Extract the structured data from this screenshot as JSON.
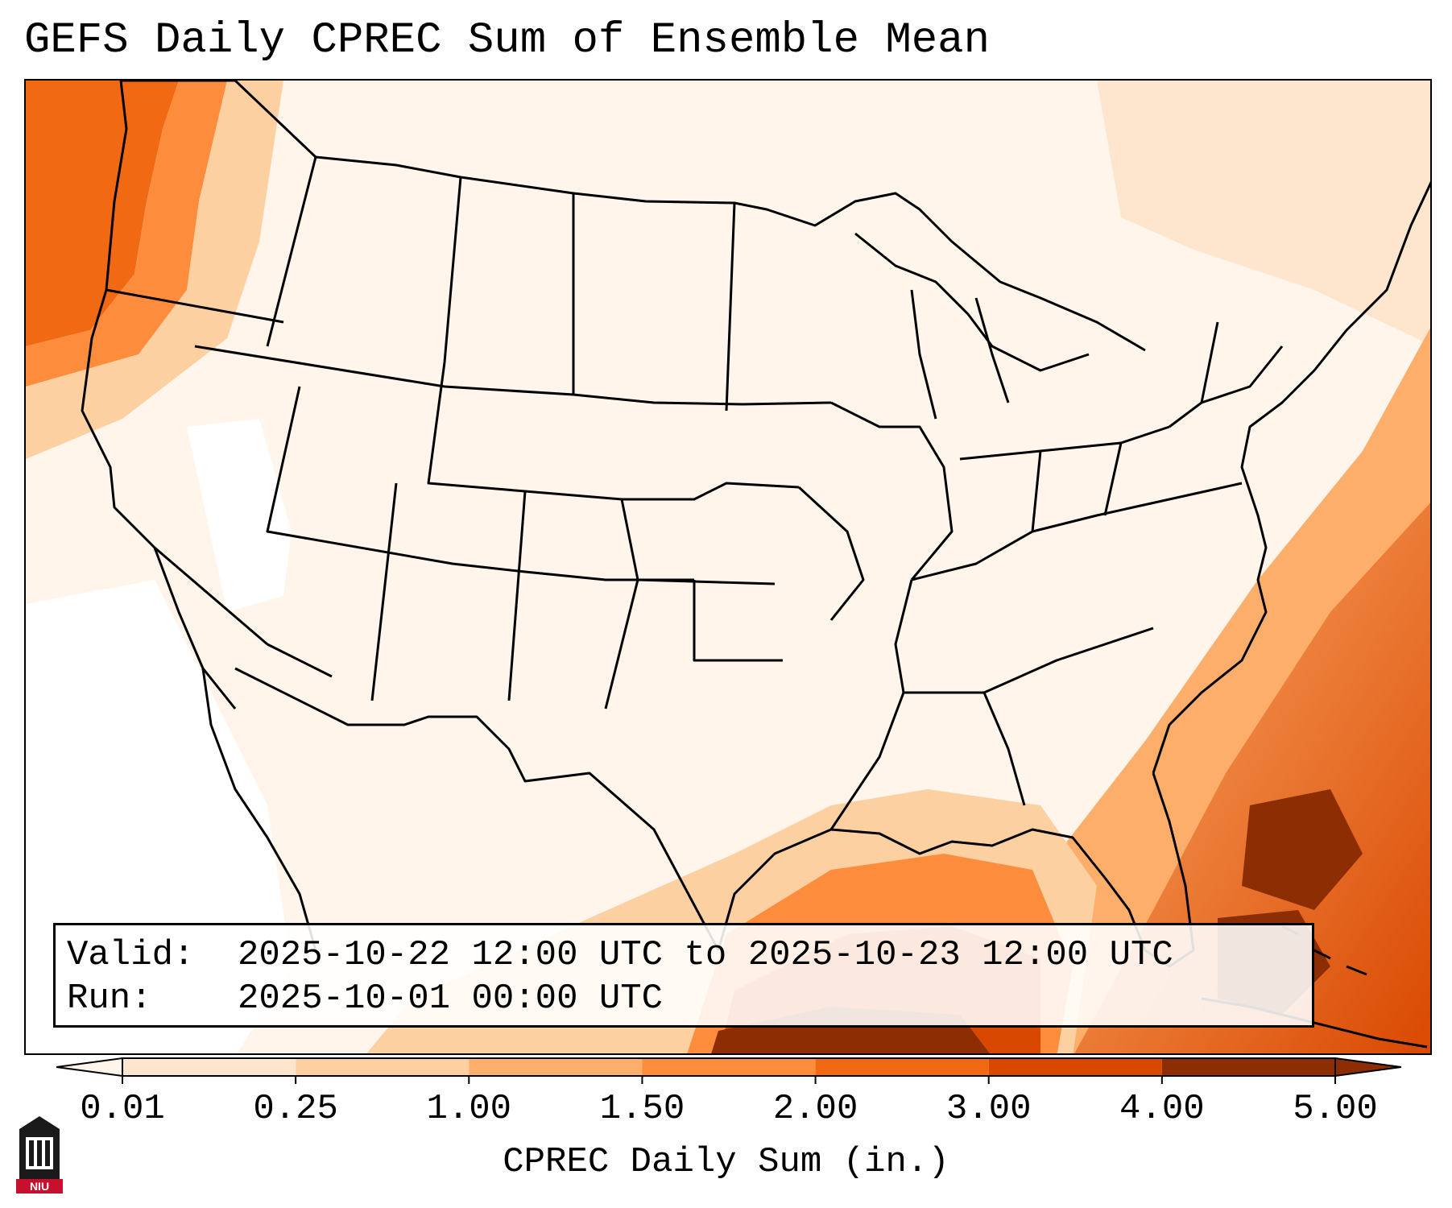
{
  "title": "GEFS Daily CPREC Sum of Ensemble Mean",
  "info": {
    "valid_label": "Valid:",
    "valid_value": "2025-10-22 12:00 UTC to 2025-10-23 12:00 UTC",
    "run_label": "Run:",
    "run_value": "2025-10-01 00:00 UTC"
  },
  "colorbar": {
    "label": "CPREC Daily Sum (in.)",
    "ticks": [
      "0.01",
      "0.25",
      "1.00",
      "1.50",
      "2.00",
      "3.00",
      "4.00",
      "5.00"
    ],
    "colors": [
      "#fff5eb",
      "#fee6ce",
      "#fdd0a2",
      "#fdae6b",
      "#fd8d3c",
      "#f16913",
      "#d94801",
      "#8c2d04"
    ],
    "extend": "both"
  },
  "map": {
    "region": "Contiguous United States",
    "field": "precipitation shading",
    "heavy_areas": [
      "Pacific Northwest coast",
      "Gulf of Mexico",
      "Southeast Atlantic coast",
      "Bahamas"
    ]
  },
  "logo": {
    "icon": "niu-logo-icon",
    "text": "NIU"
  }
}
